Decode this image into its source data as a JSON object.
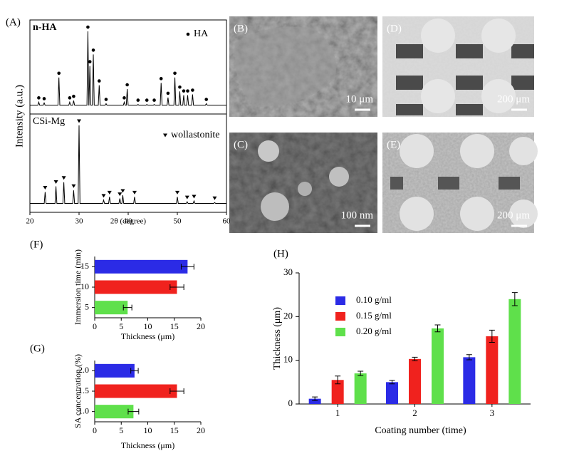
{
  "images": [
    {
      "label": "(B)",
      "scale": "10 μm"
    },
    {
      "label": "(C)",
      "scale": "100 nm"
    },
    {
      "label": "(D)",
      "scale": "200 μm"
    },
    {
      "label": "(E)",
      "scale": "200 μm"
    }
  ],
  "chart_data": [
    {
      "type": "line",
      "label": "(A)",
      "xlabel": "2θ (degree)",
      "ylabel": "Intensity (a.u.)",
      "xlim": [
        20,
        60
      ],
      "xticks": [
        20,
        30,
        40,
        50,
        60
      ],
      "ylim": [
        0,
        100
      ],
      "series": [
        {
          "name": "n-HA",
          "marker_label": "HA",
          "marker": "dot",
          "color": "#000000",
          "baseline": 4,
          "x": [
            21.8,
            22.9,
            25.9,
            28.1,
            28.9,
            31.8,
            32.2,
            32.9,
            34.1,
            35.5,
            39.2,
            39.8,
            42.0,
            43.8,
            45.3,
            46.7,
            48.1,
            49.5,
            50.5,
            51.3,
            52.1,
            53.1,
            55.9
          ],
          "values": [
            8,
            7,
            40,
            8,
            10,
            100,
            55,
            70,
            30,
            6,
            8,
            25,
            5,
            5,
            5,
            33,
            14,
            40,
            22,
            17,
            17,
            18,
            6
          ]
        },
        {
          "name": "CSi-Mg",
          "marker_label": "wollastonite",
          "marker": "triangle",
          "color": "#000000",
          "baseline": 4,
          "x": [
            23.1,
            25.3,
            26.9,
            28.9,
            30.0,
            35.0,
            36.2,
            38.3,
            38.9,
            41.3,
            50.0,
            52.0,
            53.4,
            57.6
          ],
          "values": [
            18,
            25,
            30,
            20,
            100,
            8,
            12,
            10,
            14,
            12,
            12,
            6,
            7,
            5
          ]
        }
      ]
    },
    {
      "type": "hbar",
      "label": "(F)",
      "xlabel": "Thickness (μm)",
      "ylabel": "Immersion time (min)",
      "categories": [
        "15",
        "10",
        "5"
      ],
      "values": [
        17.5,
        15.5,
        6.2
      ],
      "errors": [
        1.2,
        1.3,
        0.8
      ],
      "colors": [
        "#2b2be6",
        "#f0221e",
        "#5fe04b"
      ],
      "xlim": [
        0,
        20
      ],
      "xticks": [
        0,
        5,
        10,
        15,
        20
      ]
    },
    {
      "type": "hbar",
      "label": "(G)",
      "xlabel": "Thickness (μm)",
      "ylabel": "SA concentration (%)",
      "categories": [
        "2.0",
        "1.5",
        "1.0"
      ],
      "values": [
        7.5,
        15.5,
        7.3
      ],
      "errors": [
        0.7,
        1.3,
        1.0
      ],
      "colors": [
        "#2b2be6",
        "#f0221e",
        "#5fe04b"
      ],
      "xlim": [
        0,
        20
      ],
      "xticks": [
        0,
        5,
        10,
        15,
        20
      ]
    },
    {
      "type": "bar",
      "label": "(H)",
      "xlabel": "Coating number (time)",
      "ylabel": "Thickness (μm)",
      "categories": [
        "1",
        "2",
        "3"
      ],
      "ylim": [
        0,
        30
      ],
      "yticks": [
        0,
        10,
        20,
        30
      ],
      "series": [
        {
          "name": "0.10 g/ml",
          "color": "#2b2be6",
          "values": [
            1.2,
            5.0,
            10.7
          ],
          "errors": [
            0.4,
            0.4,
            0.6
          ]
        },
        {
          "name": "0.15 g/ml",
          "color": "#f0221e",
          "values": [
            5.5,
            10.3,
            15.5
          ],
          "errors": [
            0.9,
            0.4,
            1.4
          ]
        },
        {
          "name": "0.20 g/ml",
          "color": "#5fe04b",
          "values": [
            7.0,
            17.3,
            24.0
          ],
          "errors": [
            0.5,
            0.8,
            1.5
          ]
        }
      ]
    }
  ]
}
